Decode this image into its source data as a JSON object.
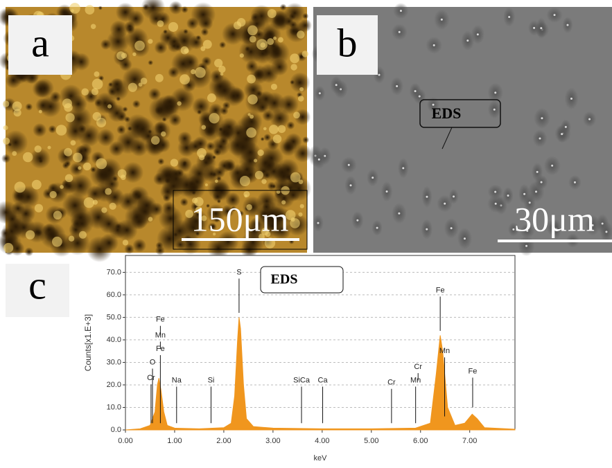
{
  "panels": [
    {
      "label": "a",
      "scale_bar": "150μm"
    },
    {
      "label": "b",
      "scale_bar": "30μm",
      "annotation": "EDS"
    },
    {
      "label": "c"
    }
  ],
  "chart_data": {
    "type": "area",
    "title": "EDS",
    "x_label": "keV",
    "y_label": "Counts[x1.E+3]",
    "color": "#f0961e",
    "x": [
      0,
      0.3,
      0.5,
      0.6,
      0.65,
      0.68,
      0.72,
      0.78,
      0.85,
      1.0,
      1.5,
      2.0,
      2.15,
      2.22,
      2.28,
      2.31,
      2.34,
      2.4,
      2.46,
      2.6,
      3.0,
      4.0,
      5.0,
      5.9,
      6.2,
      6.32,
      6.4,
      6.45,
      6.55,
      6.7,
      6.9,
      7.05,
      7.15,
      7.3,
      7.92
    ],
    "values": [
      0,
      0.5,
      2,
      8,
      20,
      23,
      18,
      8,
      2,
      0.8,
      0.5,
      1,
      3,
      15,
      40,
      50,
      45,
      20,
      5,
      1.5,
      0.8,
      0.5,
      0.5,
      0.8,
      3,
      25,
      42,
      35,
      10,
      2,
      3,
      7,
      5,
      1,
      0.3
    ],
    "xlim": [
      0,
      7.92
    ],
    "ylim": [
      0,
      77.5
    ],
    "xticks": [
      {
        "value": 0,
        "label": "0.00"
      },
      {
        "value": 1,
        "label": "1.00"
      },
      {
        "value": 2,
        "label": "2.00"
      },
      {
        "value": 3,
        "label": "3.00"
      },
      {
        "value": 4,
        "label": "4.00"
      },
      {
        "value": 5,
        "label": "5.00"
      },
      {
        "value": 6,
        "label": "6.00"
      },
      {
        "value": 7,
        "label": "7.00"
      }
    ],
    "yticks": [
      {
        "value": 0,
        "label": "0.0"
      },
      {
        "value": 10,
        "label": "10.0"
      },
      {
        "value": 20,
        "label": "20.0"
      },
      {
        "value": 30,
        "label": "30.0"
      },
      {
        "value": 40,
        "label": "40.0"
      },
      {
        "value": 50,
        "label": "50.0"
      },
      {
        "value": 60,
        "label": "60.0"
      },
      {
        "value": 70,
        "label": "70.0"
      }
    ],
    "peaks": [
      {
        "label": "Cr",
        "x": 0.52,
        "y": 23,
        "y0": 3
      },
      {
        "label": "O",
        "x": 0.55,
        "y": 30,
        "y0": 3
      },
      {
        "label": "Fe",
        "x": 0.71,
        "y": 36,
        "y0": 3
      },
      {
        "label": "Mn",
        "x": 0.71,
        "y": 42,
        "y0": 36
      },
      {
        "label": "Fe",
        "x": 0.71,
        "y": 49,
        "y0": 42
      },
      {
        "label": "Na",
        "x": 1.04,
        "y": 22,
        "y0": 3
      },
      {
        "label": "Si",
        "x": 1.74,
        "y": 22,
        "y0": 3
      },
      {
        "label": "S",
        "x": 2.31,
        "y": 70,
        "y0": 52
      },
      {
        "label": "SiCa",
        "x": 3.58,
        "y": 22,
        "y0": 3
      },
      {
        "label": "Ca",
        "x": 4.01,
        "y": 22,
        "y0": 3
      },
      {
        "label": "Cr",
        "x": 5.41,
        "y": 21,
        "y0": 3
      },
      {
        "label": "Mn",
        "x": 5.9,
        "y": 22,
        "y0": 3
      },
      {
        "label": "Cr",
        "x": 5.95,
        "y": 28,
        "y0": 22
      },
      {
        "label": "Fe",
        "x": 6.4,
        "y": 62,
        "y0": 44
      },
      {
        "label": "Mn",
        "x": 6.49,
        "y": 35,
        "y0": 6
      },
      {
        "label": "Fe",
        "x": 7.06,
        "y": 26,
        "y0": 10
      }
    ]
  }
}
